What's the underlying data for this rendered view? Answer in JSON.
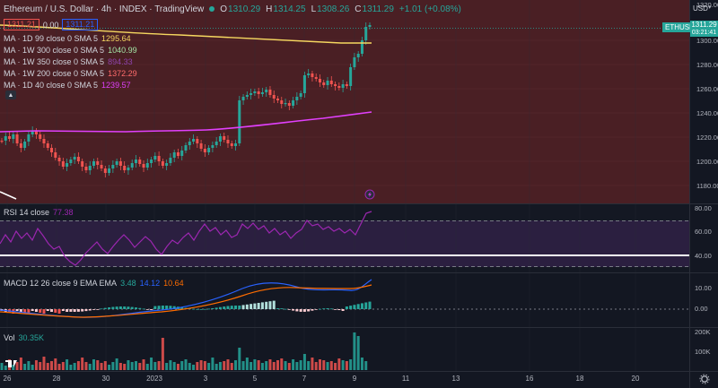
{
  "header": {
    "title": "Ethereum / U.S. Dollar · 4h · INDEX · TradingView",
    "ohlc": [
      {
        "k": "O",
        "v": "1310.29"
      },
      {
        "k": "H",
        "v": "1314.25"
      },
      {
        "k": "L",
        "v": "1308.26"
      },
      {
        "k": "C",
        "v": "1311.29"
      }
    ],
    "change": "+1.01 (+0.08%)",
    "sell_price": "1311.21",
    "spread": "0.00",
    "buy_price": "1311.21"
  },
  "indicators": [
    {
      "label": "MA · 1D 99 close 0 SMA 5",
      "value": "1295.64",
      "color": "#f6d860"
    },
    {
      "label": "MA · 1W 300 close 0 SMA 5",
      "value": "1040.99",
      "color": "#a3e4a6"
    },
    {
      "label": "MA · 1W 350 close 0 SMA 5",
      "value": "894.33",
      "color": "#8e44ad"
    },
    {
      "label": "MA · 1W 200 close 0 SMA 5",
      "value": "1372.29",
      "color": "#ff6b6b"
    },
    {
      "label": "MA · 1D 40 close 0 SMA 5",
      "value": "1239.57",
      "color": "#e040fb"
    }
  ],
  "price_axis": {
    "currency": "USD",
    "ticks": [
      "1320.00",
      "1300.00",
      "1280.00",
      "1260.00",
      "1240.00",
      "1220.00",
      "1200.00",
      "1180.00"
    ],
    "symbol_tag": "ETHUSD",
    "last_price": "1311.29",
    "countdown": "03:21:41"
  },
  "rsi": {
    "label": "RSI 14 close",
    "value": "77.38",
    "ticks": [
      "80.00",
      "60.00",
      "40.00"
    ]
  },
  "macd": {
    "label": "MACD 12 26 close 9 EMA EMA",
    "v1": "3.48",
    "v2": "14.12",
    "v3": "10.64",
    "ticks": [
      "10.00",
      "0.00"
    ]
  },
  "volume": {
    "label": "Vol",
    "value": "30.35K",
    "ticks": [
      "200K",
      "100K"
    ]
  },
  "time_axis": {
    "labels": [
      "26",
      "28",
      "30",
      "2023",
      "3",
      "5",
      "7",
      "9",
      "11",
      "13",
      "16",
      "18",
      "20"
    ]
  },
  "colors": {
    "up": "#26a69a",
    "down": "#ef5350",
    "background": "#131722",
    "main_pane": "#4a1f24",
    "ma_yellow": "#f6d860",
    "ma_magenta": "#e040fb",
    "rsi_line": "#9c27b0"
  }
}
